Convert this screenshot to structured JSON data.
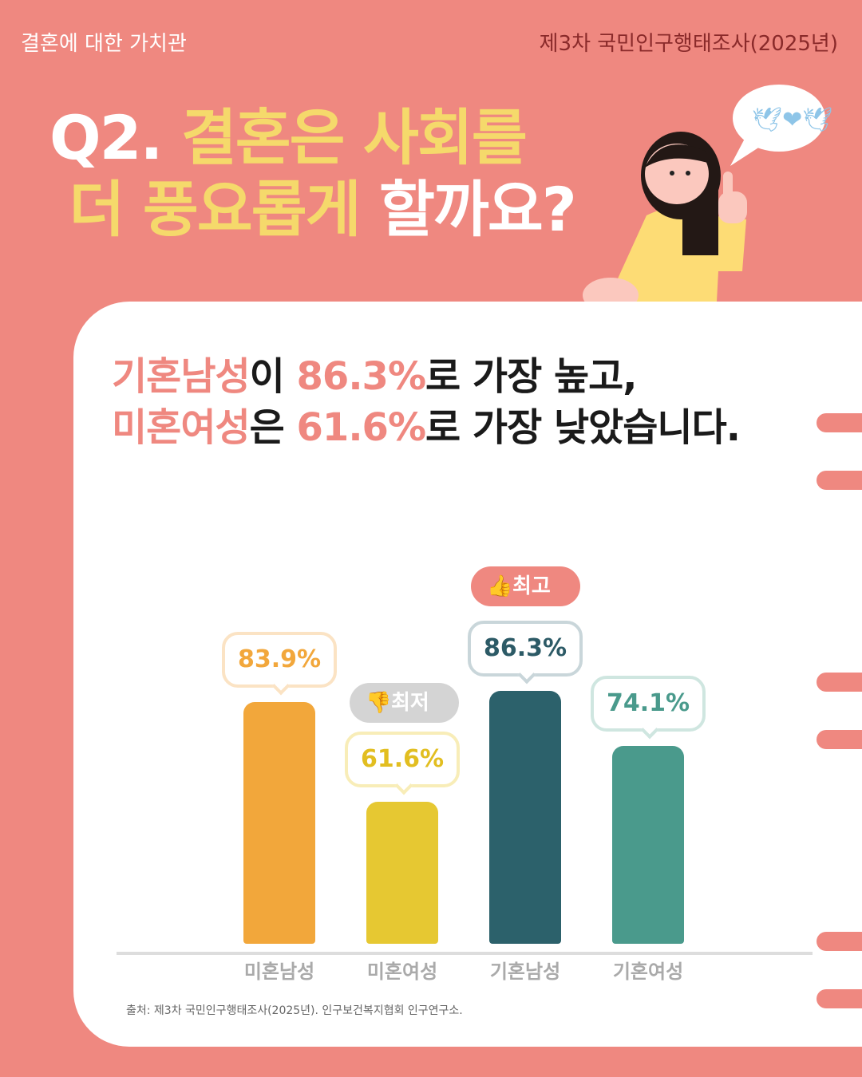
{
  "header": {
    "topic": "결혼에 대한 가치관",
    "survey": "제3차 국민인구행태조사(2025년)"
  },
  "title": {
    "q": "Q2.",
    "line1": "결혼은 사회를",
    "line2a": "더 풍요롭게",
    "line2b": "할까요?"
  },
  "headline": {
    "a1": "기혼남성",
    "a2": "이 ",
    "a3": "86.3%",
    "a4": "로 가장 높고,",
    "b1": "미혼여성",
    "b2": "은 ",
    "b3": "61.6%",
    "b4": "로 가장 낮았습니다."
  },
  "badges": {
    "best": "최고",
    "worst": "최저",
    "best_icon": "thumbs-up-icon",
    "worst_icon": "thumbs-down-icon"
  },
  "chart_data": {
    "type": "bar",
    "categories": [
      "미혼남성",
      "미혼여성",
      "기혼남성",
      "기혼여성"
    ],
    "values": [
      83.9,
      61.6,
      86.3,
      74.1
    ],
    "labels": [
      "83.9%",
      "61.6%",
      "86.3%",
      "74.1%"
    ],
    "colors": [
      "#F2A73B",
      "#E6C832",
      "#2C616B",
      "#4A9A8C"
    ],
    "label_colors": [
      "#F2A73B",
      "#E2BE20",
      "#2C5A66",
      "#4A9A8C"
    ],
    "border_colors": [
      "#FBE3C4",
      "#F8EDB8",
      "#C9D6DA",
      "#CFE6E0"
    ]
  },
  "source": "출처: 제3차 국민인구행태조사(2025년). 인구보건복지협회 인구연구소.",
  "colors": {
    "background": "#EF8880",
    "accent_yellow": "#F5D96B"
  }
}
